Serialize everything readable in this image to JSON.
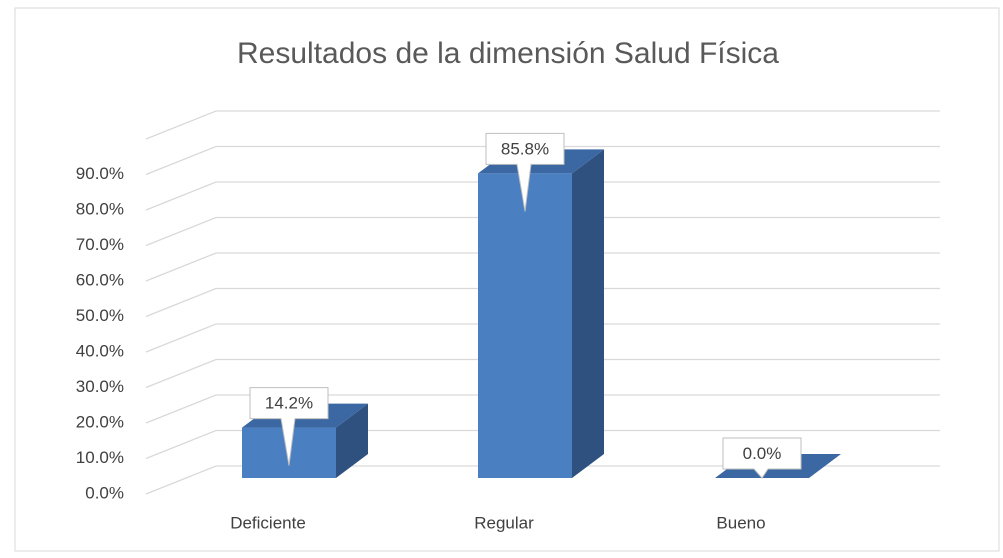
{
  "chart_data": {
    "type": "bar3d",
    "title": "Resultados de la dimensión Salud Física",
    "categories": [
      "Deficiente",
      "Regular",
      "Bueno"
    ],
    "values": [
      14.2,
      85.8,
      0.0
    ],
    "value_labels": [
      "14.2%",
      "85.8%",
      "0.0%"
    ],
    "color": "#4a7fc1",
    "ylim": [
      0,
      100
    ],
    "yticks": [
      {
        "value": 0,
        "label": "0.0%"
      },
      {
        "value": 10,
        "label": "10.0%"
      },
      {
        "value": 20,
        "label": "20.0%"
      },
      {
        "value": 30,
        "label": "30.0%"
      },
      {
        "value": 40,
        "label": "40.0%"
      },
      {
        "value": 50,
        "label": "50.0%"
      },
      {
        "value": 60,
        "label": "60.0%"
      },
      {
        "value": 70,
        "label": "70.0%"
      },
      {
        "value": 80,
        "label": "80.0%"
      },
      {
        "value": 90,
        "label": "90.0%"
      }
    ],
    "grid": true
  }
}
